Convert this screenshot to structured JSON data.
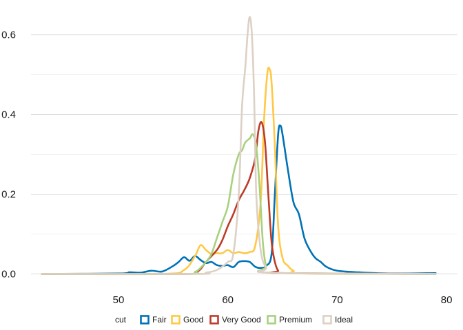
{
  "chart_data": {
    "type": "line",
    "title": "",
    "xlabel": "",
    "ylabel": "",
    "xlim": [
      42,
      81
    ],
    "ylim": [
      -0.02,
      0.67
    ],
    "x_ticks": [
      50,
      60,
      70,
      80
    ],
    "y_ticks": [
      0.0,
      0.2,
      0.4,
      0.6
    ],
    "x_tick_labels": [
      "50",
      "60",
      "70",
      "80"
    ],
    "y_tick_labels": [
      "0.0",
      "0.2",
      "0.4",
      "0.6"
    ],
    "y_minor_ticks": [
      0.1,
      0.3,
      0.5
    ],
    "grid": true,
    "legend": {
      "title": "cut",
      "position": "bottom"
    },
    "series": [
      {
        "name": "Fair",
        "color": "#0072B5",
        "points": [
          [
            43,
            0
          ],
          [
            50,
            0.001
          ],
          [
            51,
            0.004
          ],
          [
            52,
            0.003
          ],
          [
            53,
            0.008
          ],
          [
            54,
            0.006
          ],
          [
            55,
            0.02
          ],
          [
            55.5,
            0.03
          ],
          [
            56,
            0.042
          ],
          [
            56.5,
            0.033
          ],
          [
            57,
            0.045
          ],
          [
            57.5,
            0.035
          ],
          [
            58,
            0.027
          ],
          [
            58.5,
            0.03
          ],
          [
            59,
            0.022
          ],
          [
            59.5,
            0.02
          ],
          [
            60,
            0.022
          ],
          [
            60.5,
            0.017
          ],
          [
            61,
            0.03
          ],
          [
            61.5,
            0.032
          ],
          [
            62,
            0.03
          ],
          [
            62.5,
            0.018
          ],
          [
            63,
            0.015
          ],
          [
            63.5,
            0.02
          ],
          [
            64,
            0.05
          ],
          [
            64.3,
            0.2
          ],
          [
            64.6,
            0.35
          ],
          [
            64.8,
            0.372
          ],
          [
            65,
            0.35
          ],
          [
            65.5,
            0.26
          ],
          [
            66,
            0.18
          ],
          [
            66.5,
            0.15
          ],
          [
            67,
            0.09
          ],
          [
            67.5,
            0.06
          ],
          [
            68,
            0.04
          ],
          [
            68.5,
            0.03
          ],
          [
            69,
            0.018
          ],
          [
            70,
            0.008
          ],
          [
            72,
            0.004
          ],
          [
            75,
            0.001
          ],
          [
            79,
            0.002
          ]
        ]
      },
      {
        "name": "Good",
        "color": "#FFC845",
        "points": [
          [
            43,
            0
          ],
          [
            54,
            0
          ],
          [
            56,
            0.01
          ],
          [
            57,
            0.045
          ],
          [
            57.5,
            0.072
          ],
          [
            58,
            0.06
          ],
          [
            58.5,
            0.05
          ],
          [
            59,
            0.052
          ],
          [
            59.5,
            0.052
          ],
          [
            60,
            0.06
          ],
          [
            60.5,
            0.052
          ],
          [
            61,
            0.055
          ],
          [
            61.5,
            0.052
          ],
          [
            62,
            0.055
          ],
          [
            62.5,
            0.07
          ],
          [
            63,
            0.18
          ],
          [
            63.3,
            0.38
          ],
          [
            63.6,
            0.5
          ],
          [
            63.8,
            0.515
          ],
          [
            64,
            0.48
          ],
          [
            64.3,
            0.32
          ],
          [
            64.6,
            0.12
          ],
          [
            65,
            0.04
          ],
          [
            65.5,
            0.02
          ],
          [
            66,
            0.008
          ],
          [
            67,
            0.001
          ],
          [
            79,
            0
          ]
        ]
      },
      {
        "name": "Very Good",
        "color": "#BC3C29",
        "points": [
          [
            43,
            0
          ],
          [
            56,
            0
          ],
          [
            57,
            0.003
          ],
          [
            57.5,
            0.012
          ],
          [
            58,
            0.03
          ],
          [
            59,
            0.06
          ],
          [
            59.5,
            0.085
          ],
          [
            60,
            0.12
          ],
          [
            60.5,
            0.15
          ],
          [
            61,
            0.185
          ],
          [
            61.5,
            0.21
          ],
          [
            62,
            0.24
          ],
          [
            62.5,
            0.29
          ],
          [
            62.8,
            0.36
          ],
          [
            63.1,
            0.38
          ],
          [
            63.4,
            0.33
          ],
          [
            63.7,
            0.2
          ],
          [
            64,
            0.08
          ],
          [
            64.3,
            0.03
          ],
          [
            64.6,
            0.008
          ],
          [
            65,
            0.002
          ],
          [
            79,
            0
          ]
        ]
      },
      {
        "name": "Premium",
        "color": "#A9D17D",
        "points": [
          [
            43,
            0
          ],
          [
            56,
            0
          ],
          [
            57,
            0.005
          ],
          [
            57.5,
            0.015
          ],
          [
            58,
            0.03
          ],
          [
            58.5,
            0.05
          ],
          [
            59,
            0.09
          ],
          [
            59.5,
            0.13
          ],
          [
            60,
            0.17
          ],
          [
            60.5,
            0.25
          ],
          [
            61,
            0.3
          ],
          [
            61.3,
            0.31
          ],
          [
            61.6,
            0.33
          ],
          [
            62,
            0.34
          ],
          [
            62.3,
            0.35
          ],
          [
            62.6,
            0.32
          ],
          [
            62.9,
            0.22
          ],
          [
            63.2,
            0.08
          ],
          [
            63.5,
            0.02
          ],
          [
            64,
            0.003
          ],
          [
            79,
            0
          ]
        ]
      },
      {
        "name": "Ideal",
        "color": "#DDD0C5",
        "points": [
          [
            43,
            0
          ],
          [
            57,
            0
          ],
          [
            58,
            0.003
          ],
          [
            59,
            0.01
          ],
          [
            60,
            0.03
          ],
          [
            60.5,
            0.05
          ],
          [
            61,
            0.2
          ],
          [
            61.3,
            0.42
          ],
          [
            61.6,
            0.52
          ],
          [
            61.8,
            0.6
          ],
          [
            62,
            0.645
          ],
          [
            62.2,
            0.6
          ],
          [
            62.4,
            0.45
          ],
          [
            62.6,
            0.2
          ],
          [
            63,
            0.06
          ],
          [
            63.5,
            0.015
          ],
          [
            64,
            0.003
          ],
          [
            79,
            0
          ]
        ]
      }
    ]
  }
}
